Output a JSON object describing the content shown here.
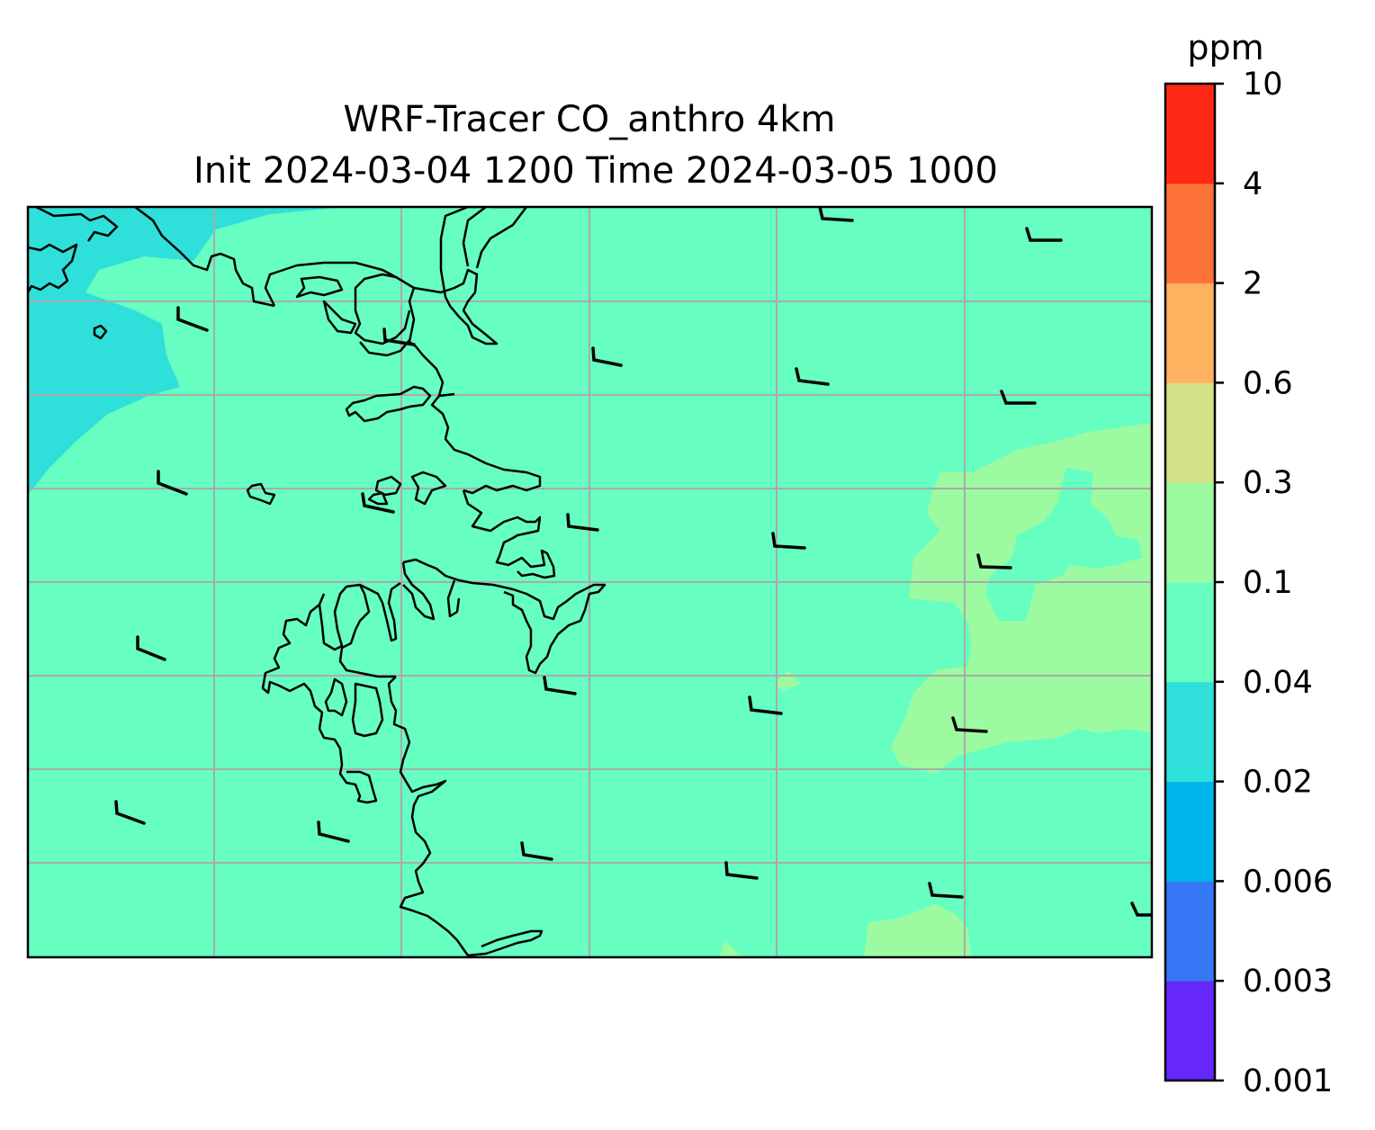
{
  "title": {
    "line1": "WRF-Tracer CO_anthro 4km",
    "line2": "Init 2024-03-04 1200 Time 2024-03-05 1000"
  },
  "colorbar": {
    "unit": "ppm",
    "levels": [
      "0.001",
      "0.003",
      "0.006",
      "0.02",
      "0.04",
      "0.1",
      "0.3",
      "0.6",
      "2",
      "4",
      "10"
    ],
    "colors": [
      "#6527fa",
      "#3677f6",
      "#00b5ec",
      "#2fdfd9",
      "#66fec1",
      "#9cfba0",
      "#d3e387",
      "#feb260",
      "#fe7339",
      "#fe2a16"
    ]
  },
  "map": {
    "colors": {
      "background_band": "#66fec1",
      "low_band": "#2fdfd9",
      "high_band": "#9cfba0",
      "coastline": "#000000",
      "gridline": "#aaaaaa",
      "wind_barb": "#000000"
    },
    "gridlines": true,
    "overlays": [
      "coastlines",
      "wind-barbs"
    ]
  }
}
